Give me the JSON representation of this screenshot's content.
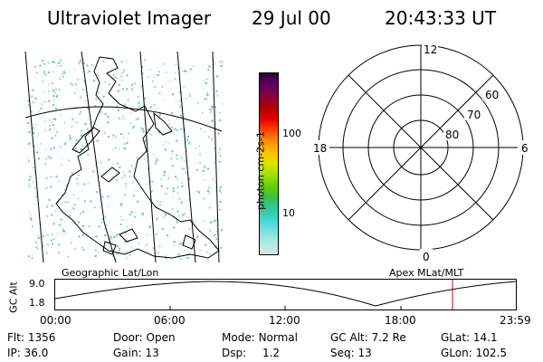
{
  "header": {
    "instrument": "Ultraviolet Imager",
    "date": "29 Jul 00",
    "time": "20:43:33 UT"
  },
  "colorbar": {
    "unit_label": "photon cm-2s-1",
    "ticks": [
      "100",
      "10"
    ],
    "colors": [
      "#d8e8e8",
      "#b0e8e0",
      "#7ee0e0",
      "#40d8d0",
      "#30c8a0",
      "#38c050",
      "#60d000",
      "#a0e000",
      "#d8e800",
      "#ffc000",
      "#ff8c00",
      "#ff4000",
      "#e00000",
      "#b00000",
      "#8a0040",
      "#60005a",
      "#2a0040"
    ]
  },
  "polar": {
    "mlt_labels": {
      "top": "12",
      "left": "18",
      "right": "6",
      "bottom": "0"
    },
    "lat_labels": [
      "60",
      "70",
      "80"
    ]
  },
  "orbit": {
    "left_label": "Geographic Lat/Lon",
    "right_label": "Apex MLat/MLT",
    "y_axis_label": "GC Alt",
    "y_ticks": [
      "9.0",
      "1.8"
    ],
    "x_ticks": [
      "00:00",
      "06:00",
      "12:00",
      "18:00",
      "23:59"
    ]
  },
  "footer": {
    "rows": [
      [
        {
          "label": "Flt:",
          "value": "1356"
        },
        {
          "label": "Door:",
          "value": "Open"
        },
        {
          "label": "Mode:",
          "value": "Normal"
        },
        {
          "label": "GC Alt:",
          "value": "7.2 Re"
        },
        {
          "label": "GLat:",
          "value": "14.1"
        }
      ],
      [
        {
          "label": "IP:",
          "value": "36.0"
        },
        {
          "label": "Gain:",
          "value": "13"
        },
        {
          "label": "Dsp:",
          "value": "1.2"
        },
        {
          "label": "Seq:",
          "value": "13"
        },
        {
          "label": "GLon:",
          "value": "102.5"
        }
      ]
    ]
  }
}
